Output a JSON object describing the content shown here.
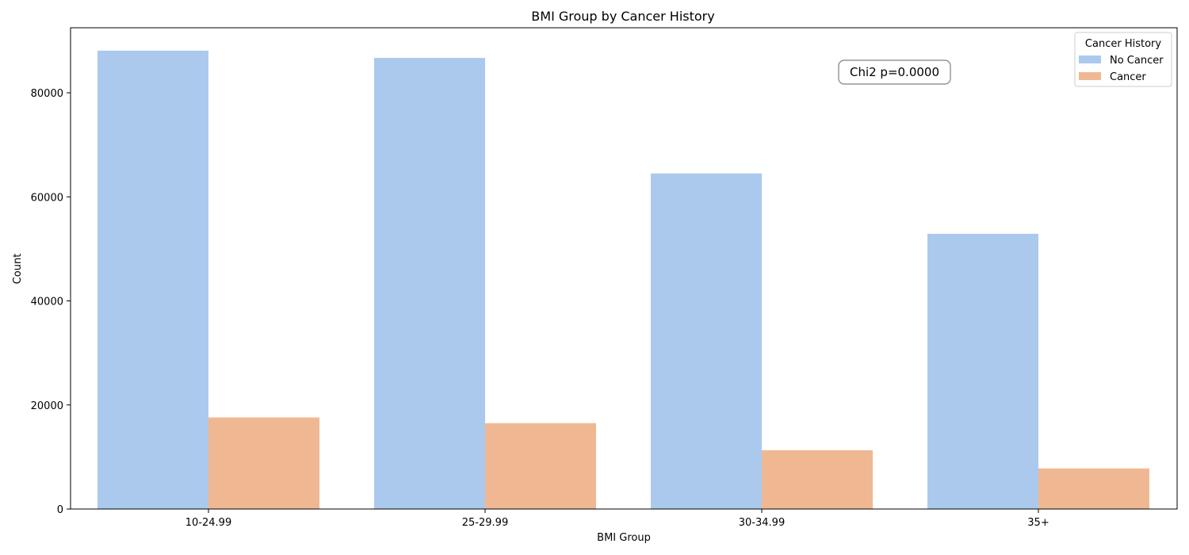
{
  "chart_data": {
    "type": "bar",
    "title": "BMI Group by Cancer History",
    "xlabel": "BMI Group",
    "ylabel": "Count",
    "categories": [
      "10-24.99",
      "25-29.99",
      "30-34.99",
      "35+"
    ],
    "series": [
      {
        "name": "No Cancer",
        "values": [
          88100,
          86700,
          64500,
          52900
        ],
        "color": "#abc9ed"
      },
      {
        "name": "Cancer",
        "values": [
          17600,
          16500,
          11300,
          7800
        ],
        "color": "#f0b892"
      }
    ],
    "ylim": [
      0,
      92500
    ],
    "yticks": [
      0,
      20000,
      40000,
      60000,
      80000
    ],
    "grid": false,
    "legend": {
      "title": "Cancer History",
      "placement": "top-right"
    },
    "annotation": "Chi2 p=0.0000"
  }
}
